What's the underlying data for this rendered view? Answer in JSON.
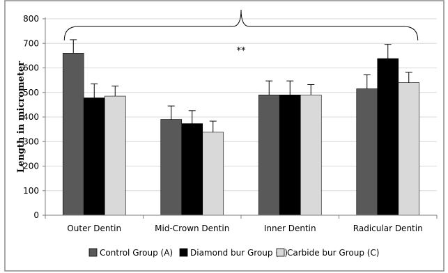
{
  "chart_data": {
    "type": "bar",
    "title": "",
    "xlabel": "",
    "ylabel": "Length in micrometer",
    "ylim": [
      0,
      800
    ],
    "yticks": [
      0,
      100,
      200,
      300,
      400,
      500,
      600,
      700,
      800
    ],
    "grid": true,
    "legend_position": "bottom",
    "categories": [
      "Outer Dentin",
      "Mid-Crown Dentin",
      "Inner Dentin",
      "Radicular Dentin"
    ],
    "series": [
      {
        "name": "Control Group (A)",
        "color": "#595959",
        "values": [
          660,
          390,
          490,
          515
        ],
        "errors": [
          55,
          55,
          57,
          57
        ]
      },
      {
        "name": "Diamond bur Group (B)",
        "color": "#000000",
        "values": [
          478,
          373,
          490,
          638
        ],
        "errors": [
          57,
          53,
          57,
          58
        ]
      },
      {
        "name": "Carbide bur Group (C)",
        "color": "#d9d9d9",
        "values": [
          485,
          338,
          490,
          540
        ],
        "errors": [
          41,
          45,
          42,
          42
        ]
      }
    ],
    "annotations": [
      {
        "text": "**",
        "spans_all_categories": true
      }
    ]
  }
}
